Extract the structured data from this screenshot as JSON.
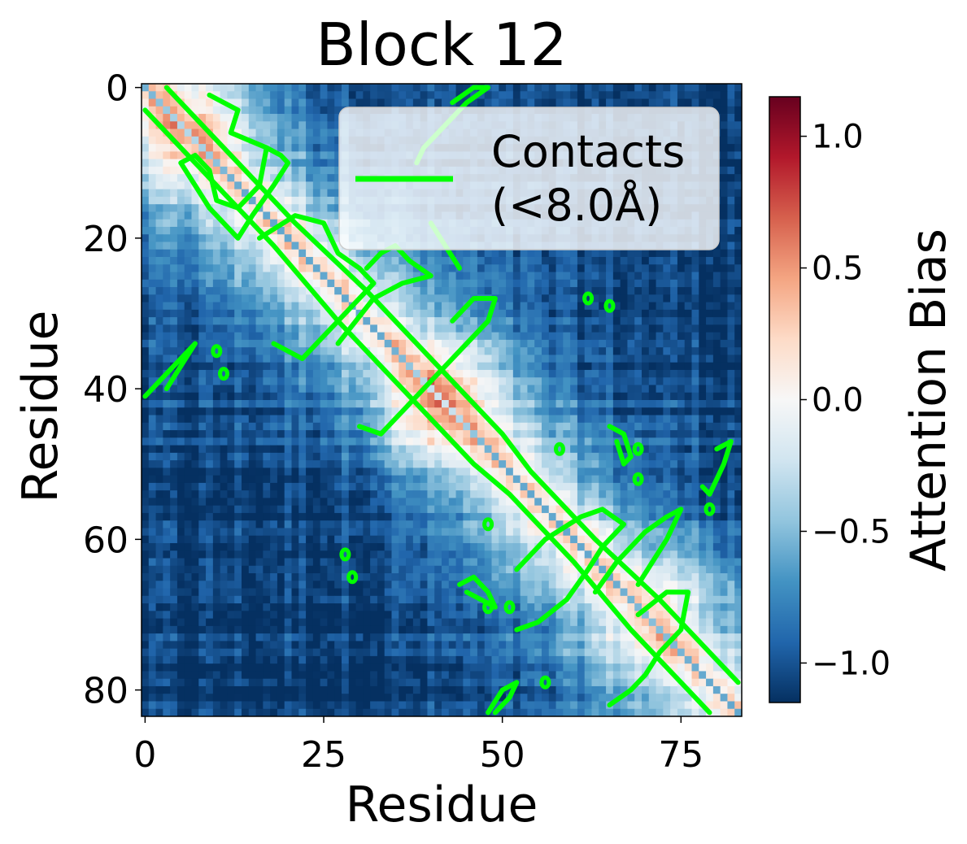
{
  "chart_data": {
    "type": "heatmap",
    "title": "Block 12",
    "xlabel": "Residue",
    "ylabel": "Residue",
    "n_residues": 84,
    "xlim": [
      0,
      83
    ],
    "ylim": [
      83,
      0
    ],
    "x_ticks": [
      0,
      25,
      50,
      75
    ],
    "y_ticks": [
      0,
      20,
      40,
      60,
      80
    ],
    "colorbar": {
      "label": "Attention Bias",
      "colormap": "RdBu_r",
      "vmin": -1.15,
      "vmax": 1.15,
      "ticks": [
        -1.0,
        -0.5,
        0.0,
        0.5,
        1.0
      ],
      "tick_labels": [
        "−1.0",
        "−0.5",
        "0.0",
        "0.5",
        "1.0"
      ]
    },
    "legend": {
      "entries": [
        "Contacts\n(<8.0Å)"
      ],
      "position": "upper right",
      "line_color": "#00ff00"
    },
    "contour": {
      "color": "#00ff00",
      "threshold_angstrom": 8.0
    },
    "heatmap_profile": {
      "diagonal_value": -0.6,
      "near_diagonal_max": 0.35,
      "background_min": -1.1,
      "warm_patches": [
        [
          2,
          10,
          0.3
        ],
        [
          45,
          38,
          0.35
        ],
        [
          66,
          77,
          0.25
        ]
      ]
    },
    "contact_outlines": [
      [
        [
          3,
          0
        ],
        [
          21,
          18
        ],
        [
          31,
          27
        ],
        [
          41,
          37
        ],
        [
          50,
          46
        ],
        [
          54,
          51
        ],
        [
          63,
          60
        ],
        [
          72,
          68
        ],
        [
          81,
          77
        ],
        [
          83,
          79
        ]
      ],
      [
        [
          0,
          3
        ],
        [
          18,
          21
        ],
        [
          27,
          31
        ],
        [
          37,
          41
        ],
        [
          46,
          50
        ],
        [
          51,
          54
        ],
        [
          60,
          63
        ],
        [
          68,
          72
        ],
        [
          77,
          81
        ],
        [
          79,
          83
        ]
      ],
      [
        [
          9,
          1
        ],
        [
          13,
          3
        ],
        [
          12,
          6
        ],
        [
          17,
          8
        ],
        [
          16,
          13
        ],
        [
          13,
          16
        ],
        [
          10,
          15
        ],
        [
          9,
          11
        ],
        [
          7,
          9
        ],
        [
          5,
          10
        ],
        [
          7,
          13
        ],
        [
          9,
          16
        ],
        [
          13,
          20
        ],
        [
          15,
          17
        ],
        [
          18,
          13
        ],
        [
          20,
          10
        ],
        [
          19,
          9
        ],
        [
          17,
          8
        ]
      ],
      [
        [
          16,
          20
        ],
        [
          21,
          17
        ],
        [
          25,
          18
        ],
        [
          27,
          22
        ],
        [
          30,
          24
        ],
        [
          32,
          26
        ],
        [
          29,
          29
        ],
        [
          27,
          31
        ],
        [
          25,
          33
        ],
        [
          22,
          36
        ],
        [
          18,
          34
        ]
      ],
      [
        [
          27,
          34
        ],
        [
          32,
          28
        ],
        [
          36,
          26
        ],
        [
          40,
          25
        ],
        [
          37,
          23
        ],
        [
          35,
          21
        ],
        [
          33,
          22
        ],
        [
          31,
          24
        ]
      ],
      [
        [
          40,
          18
        ],
        [
          42,
          21
        ],
        [
          44,
          24
        ]
      ],
      [
        [
          43,
          31
        ],
        [
          46,
          28
        ],
        [
          49,
          28
        ],
        [
          48,
          31
        ],
        [
          45,
          34
        ],
        [
          42,
          37
        ],
        [
          39,
          40
        ],
        [
          36,
          43
        ],
        [
          33,
          46
        ],
        [
          30,
          45
        ]
      ],
      [
        [
          52,
          64
        ],
        [
          56,
          60
        ],
        [
          61,
          57
        ],
        [
          64,
          56
        ],
        [
          67,
          58
        ],
        [
          64,
          61
        ],
        [
          62,
          64
        ],
        [
          59,
          68
        ],
        [
          55,
          71
        ],
        [
          52,
          72
        ]
      ],
      [
        [
          63,
          67
        ],
        [
          66,
          63
        ],
        [
          70,
          59
        ],
        [
          73,
          57
        ],
        [
          75,
          56
        ],
        [
          73,
          60
        ],
        [
          71,
          63
        ],
        [
          69,
          66
        ]
      ],
      [
        [
          69,
          70
        ],
        [
          73,
          67
        ],
        [
          76,
          67
        ],
        [
          75,
          72
        ],
        [
          72,
          75
        ],
        [
          70,
          78
        ],
        [
          68,
          80
        ],
        [
          65,
          82
        ]
      ],
      [
        [
          0,
          41
        ],
        [
          2,
          39
        ],
        [
          4,
          37
        ],
        [
          6,
          35
        ],
        [
          7,
          34
        ],
        [
          5,
          37
        ],
        [
          3,
          40
        ]
      ],
      [
        [
          43,
          2
        ],
        [
          46,
          0
        ],
        [
          48,
          0
        ],
        [
          45,
          2
        ],
        [
          42,
          5
        ],
        [
          39,
          8
        ],
        [
          38,
          10
        ]
      ],
      [
        [
          48,
          83
        ],
        [
          50,
          80
        ],
        [
          52,
          79
        ],
        [
          51,
          81
        ],
        [
          49,
          83
        ]
      ],
      [
        [
          44,
          66
        ],
        [
          46,
          65
        ],
        [
          48,
          67
        ],
        [
          49,
          69
        ],
        [
          47,
          68
        ],
        [
          45,
          67
        ]
      ],
      [
        [
          80,
          48
        ],
        [
          82,
          47
        ],
        [
          81,
          50
        ],
        [
          80,
          52
        ],
        [
          79,
          54
        ],
        [
          78,
          53
        ]
      ],
      [
        [
          65,
          45
        ],
        [
          67,
          46
        ],
        [
          68,
          49
        ],
        [
          67,
          50
        ],
        [
          66,
          47
        ]
      ]
    ],
    "contact_points": [
      [
        62,
        28
      ],
      [
        65,
        29
      ],
      [
        11,
        38
      ],
      [
        10,
        35
      ],
      [
        28,
        62
      ],
      [
        29,
        65
      ],
      [
        58,
        48
      ],
      [
        69,
        48
      ],
      [
        69,
        52
      ],
      [
        79,
        56
      ],
      [
        48,
        58
      ],
      [
        48,
        69
      ],
      [
        51,
        69
      ],
      [
        56,
        79
      ]
    ]
  }
}
